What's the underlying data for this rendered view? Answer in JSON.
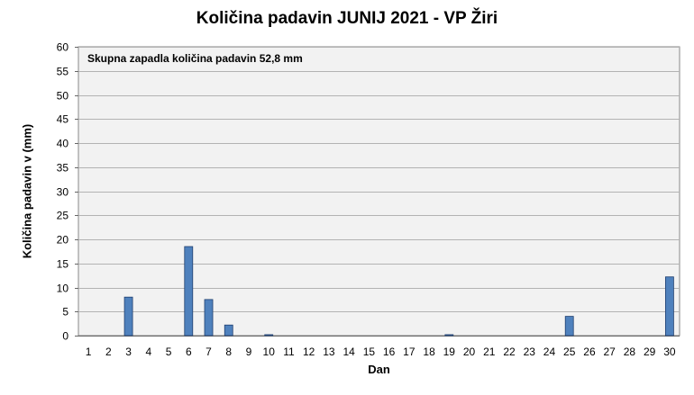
{
  "chart_data": {
    "type": "bar",
    "title": "Količina padavin JUNIJ 2021 - VP Žiri",
    "xlabel": "Dan",
    "ylabel": "Količina padavin v  (mm)",
    "annotation": "Skupna zapadla količina padavin 52,8 mm",
    "ylim": [
      0,
      60
    ],
    "yticks": [
      0,
      5,
      10,
      15,
      20,
      25,
      30,
      35,
      40,
      45,
      50,
      55,
      60
    ],
    "grid": true,
    "legend": "none",
    "categories": [
      "1",
      "2",
      "3",
      "4",
      "5",
      "6",
      "7",
      "8",
      "9",
      "10",
      "11",
      "12",
      "13",
      "14",
      "15",
      "16",
      "17",
      "18",
      "19",
      "20",
      "21",
      "22",
      "23",
      "24",
      "25",
      "26",
      "27",
      "28",
      "29",
      "30"
    ],
    "values": [
      0,
      0,
      8.0,
      0,
      0,
      18.5,
      7.5,
      2.2,
      0,
      0.2,
      0,
      0,
      0,
      0,
      0,
      0,
      0,
      0,
      0.2,
      0,
      0,
      0,
      0,
      0,
      4.0,
      0,
      0,
      0,
      0,
      12.2
    ],
    "colors": {
      "bar": "#4f81bd",
      "bar_edge": "#1f3f6f",
      "plot_bg": "#f2f2f2",
      "grid": "#b3b3b3"
    }
  }
}
